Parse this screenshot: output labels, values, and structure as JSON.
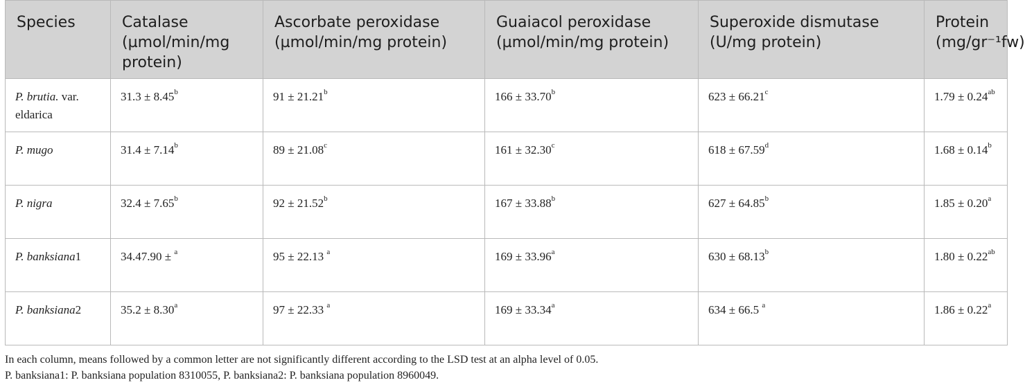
{
  "headers": [
    "Species",
    "Catalase (µmol/min/mg protein)",
    "Ascorbate peroxidase (µmol/min/mg protein)",
    "Guaiacol peroxidase (µmol/min/mg protein)",
    "Superoxide dismutase (U/mg protein)",
    "Protein (mg/gr⁻¹fw)"
  ],
  "rows": [
    {
      "species_italic": "P. brutia.",
      "species_rest": " var. eldarica",
      "cells": [
        {
          "v": "31.3 ± 8.45",
          "s": "b"
        },
        {
          "v": "91 ± 21.21",
          "s": "b"
        },
        {
          "v": "166 ± 33.70",
          "s": "b"
        },
        {
          "v": "623 ± 66.21",
          "s": "c"
        },
        {
          "v": "1.79 ± 0.24",
          "s": "ab"
        }
      ]
    },
    {
      "species_italic": "P. mugo",
      "species_rest": "",
      "cells": [
        {
          "v": "31.4 ± 7.14",
          "s": "b"
        },
        {
          "v": "89 ± 21.08",
          "s": "c"
        },
        {
          "v": "161 ± 32.30",
          "s": "c"
        },
        {
          "v": "618 ± 67.59",
          "s": "d"
        },
        {
          "v": "1.68 ± 0.14",
          "s": "b"
        }
      ]
    },
    {
      "species_italic": "P. nigra",
      "species_rest": "",
      "cells": [
        {
          "v": "32.4 ± 7.65",
          "s": "b"
        },
        {
          "v": "92 ± 21.52",
          "s": "b"
        },
        {
          "v": "167 ± 33.88",
          "s": "b"
        },
        {
          "v": "627 ± 64.85",
          "s": "b"
        },
        {
          "v": "1.85 ± 0.20",
          "s": "a"
        }
      ]
    },
    {
      "species_italic": "P. banksiana",
      "species_rest": "1",
      "cells": [
        {
          "v": "34.47.90 ± ",
          "s": "a"
        },
        {
          "v": "95 ± 22.13 ",
          "s": "a"
        },
        {
          "v": "169 ± 33.96",
          "s": "a"
        },
        {
          "v": "630 ± 68.13",
          "s": "b"
        },
        {
          "v": "1.80 ± 0.22",
          "s": "ab"
        }
      ]
    },
    {
      "species_italic": "P. banksiana",
      "species_rest": "2",
      "cells": [
        {
          "v": "35.2 ± 8.30",
          "s": "a"
        },
        {
          "v": "97 ± 22.33 ",
          "s": "a"
        },
        {
          "v": "169 ± 33.34",
          "s": "a"
        },
        {
          "v": "634 ± 66.5 ",
          "s": "a"
        },
        {
          "v": "1.86 ± 0.22",
          "s": "a"
        }
      ]
    }
  ],
  "footnotes": [
    "In each column, means followed by a common letter are not significantly different according to the LSD test at an alpha level of 0.05.",
    "P. banksiana1: P. banksiana population 8310055, P. banksiana2: P. banksiana population 8960049."
  ]
}
